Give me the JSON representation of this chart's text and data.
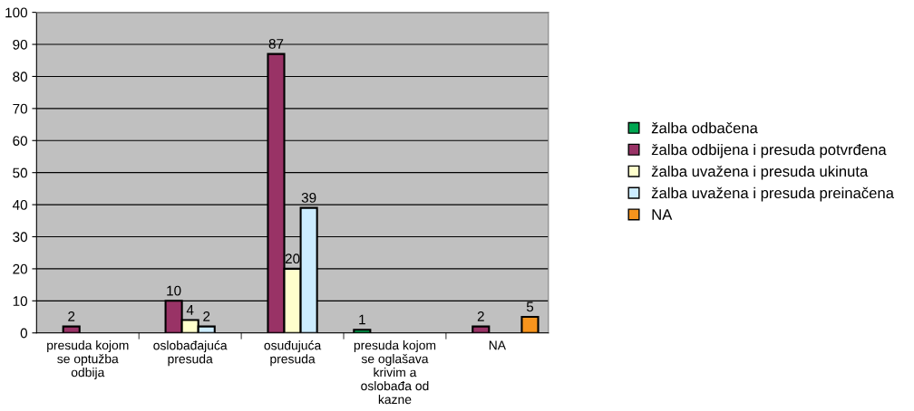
{
  "chart_data": {
    "type": "bar",
    "categories": [
      "presuda kojom\nse optužba\nodbija",
      "oslobađajuća\npresuda",
      "osuđujuća\npresuda",
      "presuda kojom\nse oglašava\nkrivim a\noslobađa od\nkazne",
      "NA"
    ],
    "series": [
      {
        "name": "žalba odbačena",
        "color": "#00a651",
        "values": [
          null,
          null,
          null,
          1,
          null
        ]
      },
      {
        "name": "žalba odbijena i presuda potvrđena",
        "color": "#993366",
        "values": [
          2,
          10,
          87,
          null,
          2
        ]
      },
      {
        "name": "žalba uvažena i presuda ukinuta",
        "color": "#ffffcc",
        "values": [
          null,
          4,
          20,
          null,
          null
        ]
      },
      {
        "name": "žalba uvažena i presuda preinačena",
        "color": "#ccecff",
        "values": [
          null,
          2,
          39,
          null,
          null
        ]
      },
      {
        "name": "NA",
        "color": "#f7941d",
        "values": [
          null,
          null,
          null,
          null,
          5
        ]
      }
    ],
    "ylim": [
      0,
      100
    ],
    "yticks": [
      0,
      10,
      20,
      30,
      40,
      50,
      60,
      70,
      80,
      90,
      100
    ],
    "grid": "y",
    "legend": "right",
    "data_labels": true
  }
}
